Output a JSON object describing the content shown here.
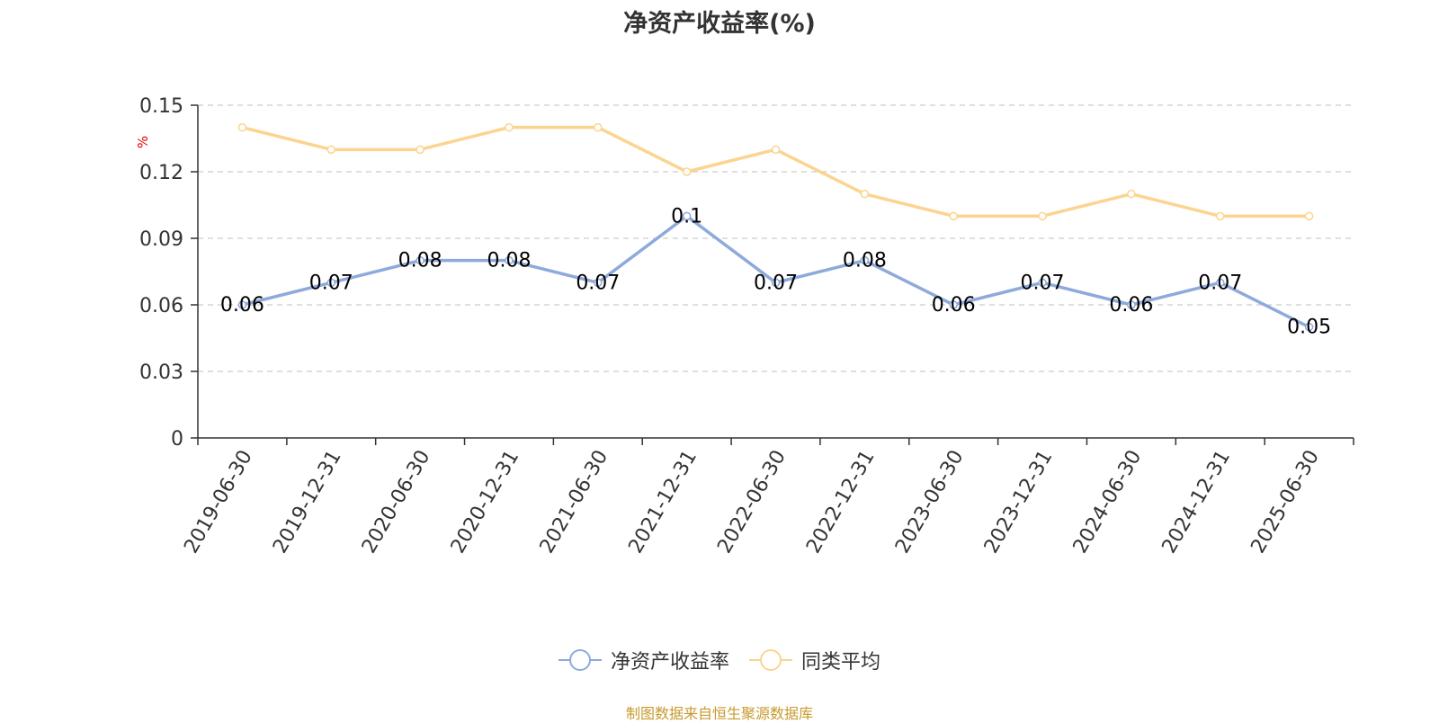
{
  "chart_data": {
    "type": "line",
    "title": "净资产收益率(%)",
    "ylabel": "%",
    "xlabel": "",
    "categories": [
      "2019-06-30",
      "2019-12-31",
      "2020-06-30",
      "2020-12-31",
      "2021-06-30",
      "2021-12-31",
      "2022-06-30",
      "2022-12-31",
      "2023-06-30",
      "2023-12-31",
      "2024-06-30",
      "2024-12-31",
      "2025-06-30"
    ],
    "series": [
      {
        "name": "净资产收益率",
        "color": "#8eaadb",
        "show_labels": true,
        "values": [
          0.06,
          0.07,
          0.08,
          0.08,
          0.07,
          0.1,
          0.07,
          0.08,
          0.06,
          0.07,
          0.06,
          0.07,
          0.05
        ]
      },
      {
        "name": "同类平均",
        "color": "#fcd48f",
        "show_labels": false,
        "values": [
          0.14,
          0.13,
          0.13,
          0.14,
          0.14,
          0.12,
          0.13,
          0.11,
          0.1,
          0.1,
          0.11,
          0.1,
          0.1
        ]
      }
    ],
    "yticks": [
      0,
      0.03,
      0.06,
      0.09,
      0.12,
      0.15
    ],
    "ytick_labels": [
      "0",
      "0.03",
      "0.06",
      "0.09",
      "0.12",
      "0.15"
    ],
    "ylim": [
      0,
      0.15
    ],
    "grid": true,
    "legend_position": "bottom-center"
  },
  "source_note": "制图数据来自恒生聚源数据库"
}
